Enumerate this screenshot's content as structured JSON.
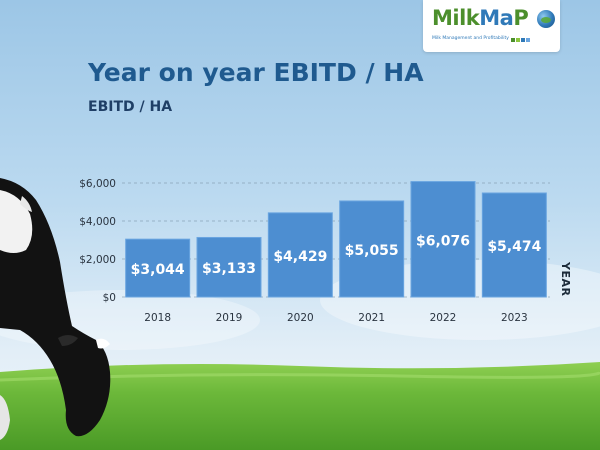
{
  "header": {
    "title": "Year on year EBITD / HA",
    "subtitle": "EBITD / HA"
  },
  "logo": {
    "text_milk": "Milk",
    "text_ma": "Ma",
    "text_p": "P",
    "tagline": "Milk Management and Profitability"
  },
  "colors": {
    "bar": "#4d8ed1",
    "bar_edge": "#6aa5e0",
    "title": "#1f5a8f",
    "brand_green": "#4c8f2c",
    "brand_blue": "#2f79b8"
  },
  "chart_data": {
    "type": "bar",
    "title": "EBITD / HA",
    "xlabel": "YEAR",
    "ylabel": "",
    "categories": [
      "2018",
      "2019",
      "2020",
      "2021",
      "2022",
      "2023"
    ],
    "values": [
      3044,
      3133,
      4429,
      5055,
      6076,
      5474
    ],
    "value_labels": [
      "$3,044",
      "$3,133",
      "$4,429",
      "$5,055",
      "$6,076",
      "$5,474"
    ],
    "yticks": [
      0,
      2000,
      4000,
      6000
    ],
    "ytick_labels": [
      "$0",
      "$2,000",
      "$4,000",
      "$6,000"
    ],
    "ylim": [
      0,
      6000
    ],
    "grid": "dashed horizontal",
    "legend": "none"
  }
}
